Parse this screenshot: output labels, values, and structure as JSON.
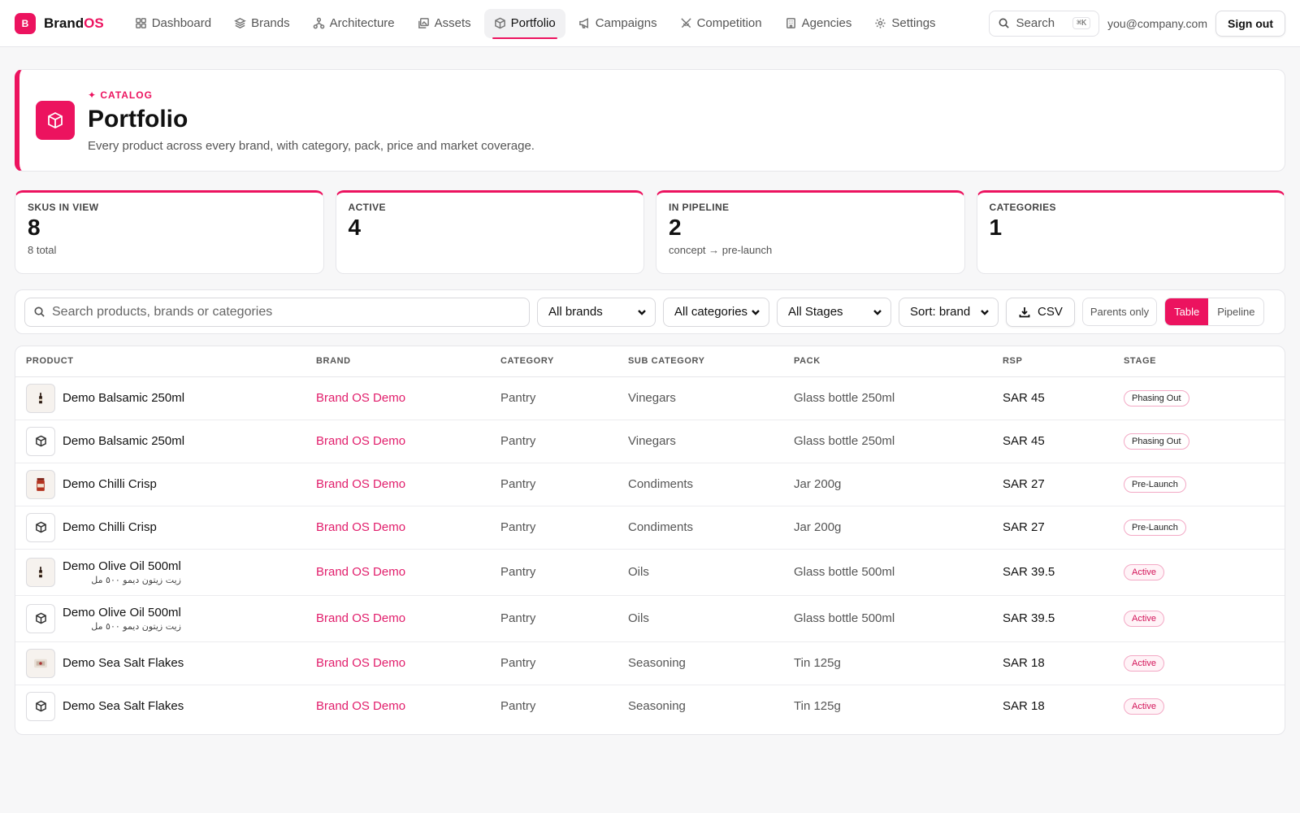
{
  "app": {
    "logo_letter": "B",
    "logo_name_a": "Brand",
    "logo_name_b": "OS"
  },
  "nav": [
    {
      "label": "Dashboard",
      "icon": "grid-icon"
    },
    {
      "label": "Brands",
      "icon": "layers-icon"
    },
    {
      "label": "Architecture",
      "icon": "hierarchy-icon"
    },
    {
      "label": "Assets",
      "icon": "images-icon"
    },
    {
      "label": "Portfolio",
      "icon": "box-icon",
      "active": true
    },
    {
      "label": "Campaigns",
      "icon": "megaphone-icon"
    },
    {
      "label": "Competition",
      "icon": "swords-icon"
    },
    {
      "label": "Agencies",
      "icon": "building-icon"
    },
    {
      "label": "Settings",
      "icon": "gear-icon"
    }
  ],
  "topbar": {
    "search_label": "Search",
    "search_shortcut": "⌘K",
    "user_email": "you@company.com",
    "signout_label": "Sign out"
  },
  "hero": {
    "eyebrow": "✦ CATALOG",
    "title": "Portfolio",
    "subtitle": "Every product across every brand, with category, pack, price and market coverage."
  },
  "stats": [
    {
      "label": "SKUS IN VIEW",
      "value": "8",
      "sub": "8 total"
    },
    {
      "label": "ACTIVE",
      "value": "4",
      "sub": ""
    },
    {
      "label": "IN PIPELINE",
      "value": "2",
      "sub": "concept → pre-launch"
    },
    {
      "label": "CATEGORIES",
      "value": "1",
      "sub": ""
    }
  ],
  "filters": {
    "search_placeholder": "Search products, brands or categories",
    "brand_select": "All brands",
    "category_select": "All categories",
    "stage_select": "All Stages",
    "sort_select": "Sort: brand",
    "csv_label": "CSV",
    "parents_label": "Parents only",
    "view_table": "Table",
    "view_pipeline": "Pipeline"
  },
  "table": {
    "columns": [
      "PRODUCT",
      "BRAND",
      "CATEGORY",
      "SUB CATEGORY",
      "PACK",
      "RSP",
      "STAGE"
    ],
    "rows": [
      {
        "product": "Demo Balsamic 250ml",
        "product_ar": "",
        "thumb": "bottle",
        "brand": "Brand OS Demo",
        "category": "Pantry",
        "sub_category": "Vinegars",
        "pack": "Glass bottle 250ml",
        "rsp": "SAR 45",
        "stage": "Phasing Out"
      },
      {
        "product": "Demo Balsamic 250ml",
        "product_ar": "",
        "thumb": "box",
        "brand": "Brand OS Demo",
        "category": "Pantry",
        "sub_category": "Vinegars",
        "pack": "Glass bottle 250ml",
        "rsp": "SAR 45",
        "stage": "Phasing Out"
      },
      {
        "product": "Demo Chilli Crisp",
        "product_ar": "",
        "thumb": "jar",
        "brand": "Brand OS Demo",
        "category": "Pantry",
        "sub_category": "Condiments",
        "pack": "Jar 200g",
        "rsp": "SAR 27",
        "stage": "Pre-Launch"
      },
      {
        "product": "Demo Chilli Crisp",
        "product_ar": "",
        "thumb": "box",
        "brand": "Brand OS Demo",
        "category": "Pantry",
        "sub_category": "Condiments",
        "pack": "Jar 200g",
        "rsp": "SAR 27",
        "stage": "Pre-Launch"
      },
      {
        "product": "Demo Olive Oil 500ml",
        "product_ar": "زيت زيتون ديمو ٥٠٠ مل",
        "thumb": "bottle",
        "brand": "Brand OS Demo",
        "category": "Pantry",
        "sub_category": "Oils",
        "pack": "Glass bottle 500ml",
        "rsp": "SAR 39.5",
        "stage": "Active"
      },
      {
        "product": "Demo Olive Oil 500ml",
        "product_ar": "زيت زيتون ديمو ٥٠٠ مل",
        "thumb": "box",
        "brand": "Brand OS Demo",
        "category": "Pantry",
        "sub_category": "Oils",
        "pack": "Glass bottle 500ml",
        "rsp": "SAR 39.5",
        "stage": "Active"
      },
      {
        "product": "Demo Sea Salt Flakes",
        "product_ar": "",
        "thumb": "tin",
        "brand": "Brand OS Demo",
        "category": "Pantry",
        "sub_category": "Seasoning",
        "pack": "Tin 125g",
        "rsp": "SAR 18",
        "stage": "Active"
      },
      {
        "product": "Demo Sea Salt Flakes",
        "product_ar": "",
        "thumb": "box",
        "brand": "Brand OS Demo",
        "category": "Pantry",
        "sub_category": "Seasoning",
        "pack": "Tin 125g",
        "rsp": "SAR 18",
        "stage": "Active"
      }
    ]
  },
  "colors": {
    "accent": "#ec135f",
    "brand_link": "#e11d6b"
  }
}
